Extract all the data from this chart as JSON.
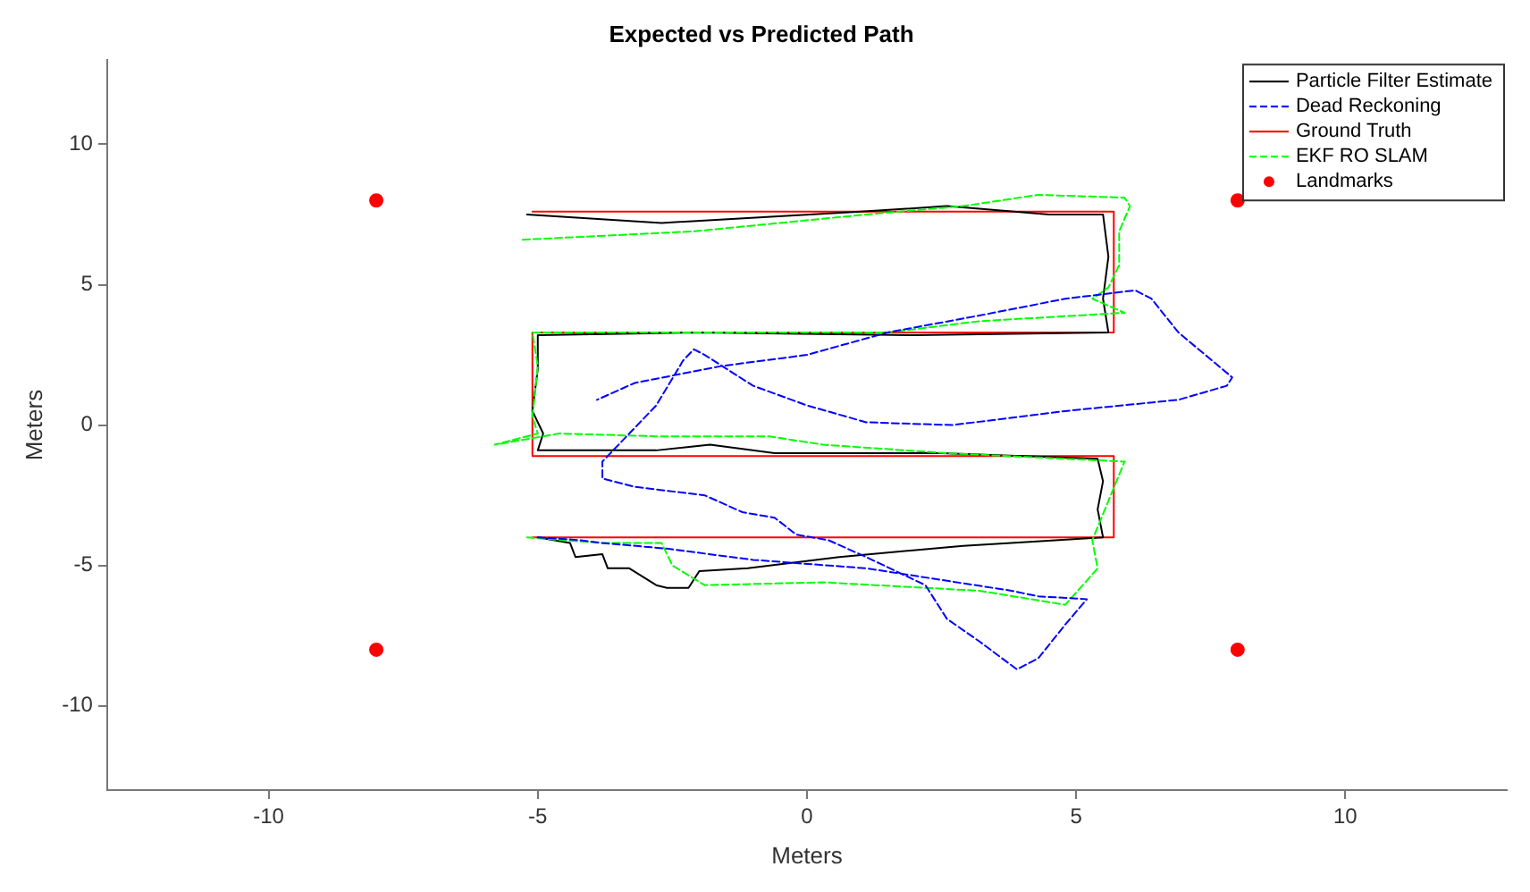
{
  "chart_data": {
    "type": "line",
    "title": "Expected vs Predicted Path",
    "xlabel": "Meters",
    "ylabel": "Meters",
    "xlim": [
      -13,
      13
    ],
    "ylim": [
      -13,
      13
    ],
    "xticks": [
      -10,
      -5,
      0,
      5,
      10
    ],
    "yticks": [
      -10,
      -5,
      0,
      5,
      10
    ],
    "grid": false,
    "legend": "top right",
    "series": [
      {
        "name": "Particle Filter Estimate",
        "type": "line",
        "color": "#000000",
        "line_style": "solid",
        "x": [
          -5.2,
          -2.7,
          1.0,
          2.6,
          4.5,
          5.5,
          5.6,
          5.5,
          5.6,
          2.0,
          -2.0,
          -5.0,
          -5.0,
          -5.1,
          -4.9,
          -5.0,
          -2.8,
          -1.8,
          -0.6,
          2.5,
          5.4,
          5.5,
          5.4,
          5.5,
          2.9,
          0.6,
          -1.1,
          -2.0,
          -2.2,
          -2.6,
          -2.8,
          -3.3,
          -3.7,
          -3.8,
          -4.3,
          -4.4,
          -5.0
        ],
        "values": [
          7.5,
          7.2,
          7.6,
          7.8,
          7.5,
          7.5,
          6.0,
          4.5,
          3.3,
          3.2,
          3.3,
          3.2,
          2.0,
          0.5,
          -0.3,
          -0.9,
          -0.9,
          -0.7,
          -1.0,
          -1.0,
          -1.2,
          -2.0,
          -3.0,
          -4.0,
          -4.3,
          -4.7,
          -5.1,
          -5.2,
          -5.8,
          -5.8,
          -5.7,
          -5.1,
          -5.1,
          -4.6,
          -4.7,
          -4.2,
          -4.0
        ]
      },
      {
        "name": "Dead Reckoning",
        "type": "line",
        "color": "#0000ff",
        "line_style": "dashed",
        "x": [
          -5.0,
          -4.2,
          -3.8,
          -2.6,
          -1.0,
          1.1,
          3.8,
          4.3,
          5.2,
          4.8,
          4.3,
          3.9,
          3.2,
          2.6,
          2.2,
          1.1,
          0.4,
          -0.2,
          -0.6,
          -1.2,
          -1.9,
          -3.2,
          -3.8,
          -3.8,
          -3.5,
          -2.8,
          -2.3,
          -2.1,
          -1.9,
          -1.0,
          0.0,
          1.1,
          2.7,
          4.8,
          6.9,
          7.8,
          7.9,
          7.4,
          6.9,
          6.4,
          6.1,
          4.8,
          3.2,
          1.5,
          0.0,
          -1.6,
          -3.2,
          -3.9
        ],
        "values": [
          -4.0,
          -4.1,
          -4.2,
          -4.4,
          -4.8,
          -5.1,
          -5.9,
          -6.1,
          -6.2,
          -7.1,
          -8.3,
          -8.7,
          -7.7,
          -6.9,
          -5.7,
          -4.7,
          -4.1,
          -3.9,
          -3.3,
          -3.1,
          -2.5,
          -2.2,
          -1.9,
          -1.3,
          -0.7,
          0.7,
          2.3,
          2.7,
          2.5,
          1.4,
          0.7,
          0.1,
          0.0,
          0.5,
          0.9,
          1.4,
          1.7,
          2.5,
          3.3,
          4.5,
          4.8,
          4.5,
          3.9,
          3.3,
          2.5,
          2.1,
          1.5,
          0.9
        ]
      },
      {
        "name": "Ground Truth",
        "type": "line",
        "color": "#ff0000",
        "line_style": "solid",
        "x": [
          -5.1,
          5.7,
          5.7,
          -5.1,
          -5.1,
          5.7,
          5.7,
          -5.1
        ],
        "values": [
          7.6,
          7.6,
          3.3,
          3.3,
          -1.1,
          -1.1,
          -4.0,
          -4.0
        ]
      },
      {
        "name": "EKF RO SLAM",
        "type": "line",
        "color": "#00ff00",
        "line_style": "dashed",
        "x": [
          -5.2,
          -3.8,
          -2.7,
          -2.5,
          -1.9,
          0.3,
          3.2,
          4.8,
          5.4,
          5.3,
          5.9,
          2.6,
          0.3,
          -0.7,
          -2.8,
          -4.6,
          -5.8,
          -5.0,
          -5.1,
          -5.0,
          -5.1,
          -2.1,
          1.5,
          3.2,
          5.9,
          5.3,
          5.6,
          5.8,
          5.8,
          6.0,
          5.9,
          4.3,
          2.9,
          1.1,
          -2.1,
          -5.3
        ],
        "values": [
          -4.0,
          -4.2,
          -4.2,
          -5.0,
          -5.7,
          -5.6,
          -5.9,
          -6.4,
          -5.1,
          -4.1,
          -1.3,
          -1.0,
          -0.7,
          -0.4,
          -0.4,
          -0.3,
          -0.7,
          -0.3,
          0.3,
          2.1,
          3.3,
          3.3,
          3.3,
          3.7,
          4.0,
          4.5,
          4.9,
          5.7,
          6.9,
          7.8,
          8.1,
          8.2,
          7.8,
          7.5,
          6.9,
          6.6
        ]
      },
      {
        "name": "Landmarks",
        "type": "scatter",
        "color": "#ff0000",
        "marker": "circle",
        "x": [
          -8,
          8,
          -8,
          8
        ],
        "values": [
          8,
          8,
          -8,
          -8
        ]
      }
    ]
  }
}
